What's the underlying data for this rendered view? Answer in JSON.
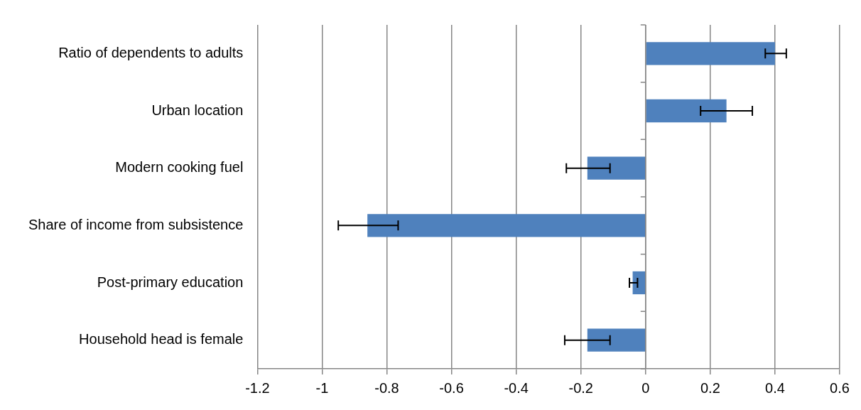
{
  "chart_data": {
    "type": "bar",
    "orientation": "horizontal",
    "categories": [
      "Ratio of dependents to adults",
      "Urban location",
      "Modern cooking fuel",
      "Share of income from subsistence",
      "Post-primary education",
      "Household head is female"
    ],
    "values": [
      0.4,
      0.25,
      -0.18,
      -0.86,
      -0.04,
      -0.18
    ],
    "errors": [
      [
        0.37,
        0.435
      ],
      [
        0.17,
        0.33
      ],
      [
        -0.245,
        -0.11
      ],
      [
        -0.95,
        -0.765
      ],
      [
        -0.05,
        -0.025
      ],
      [
        -0.25,
        -0.11
      ]
    ],
    "color": "#4f81bd",
    "xlim": [
      -1.2,
      0.6
    ],
    "xticks": [
      -1.2,
      -1,
      -0.8,
      -0.6,
      -0.4,
      -0.2,
      0,
      0.2,
      0.4,
      0.6
    ],
    "grid": "x",
    "legend": false
  }
}
